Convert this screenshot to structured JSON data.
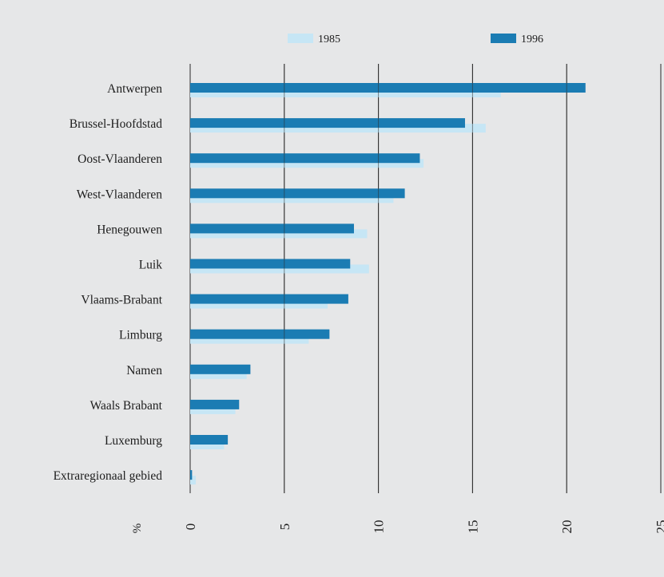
{
  "chart_data": {
    "type": "bar",
    "orientation": "horizontal",
    "title": "",
    "xlabel": "%",
    "ylabel": "",
    "xlim": [
      0,
      25
    ],
    "x_ticks": [
      0,
      5,
      10,
      15,
      20,
      25
    ],
    "grid": true,
    "legend_position": "top",
    "categories": [
      "Antwerpen",
      "Brussel-Hoofdstad",
      "Oost-Vlaanderen",
      "West-Vlaanderen",
      "Henegouwen",
      "Luik",
      "Vlaams-Brabant",
      "Limburg",
      "Namen",
      "Waals Brabant",
      "Luxemburg",
      "Extraregionaal gebied"
    ],
    "series": [
      {
        "name": "1985",
        "color": "#c6e6f5",
        "values": [
          16.5,
          15.7,
          12.4,
          10.8,
          9.4,
          9.5,
          7.3,
          6.3,
          3.0,
          2.4,
          1.8,
          0.3
        ]
      },
      {
        "name": "1996",
        "color": "#1b7cb3",
        "values": [
          21.0,
          14.6,
          12.2,
          11.4,
          8.7,
          8.5,
          8.4,
          7.4,
          3.2,
          2.6,
          2.0,
          0.1
        ]
      }
    ]
  }
}
